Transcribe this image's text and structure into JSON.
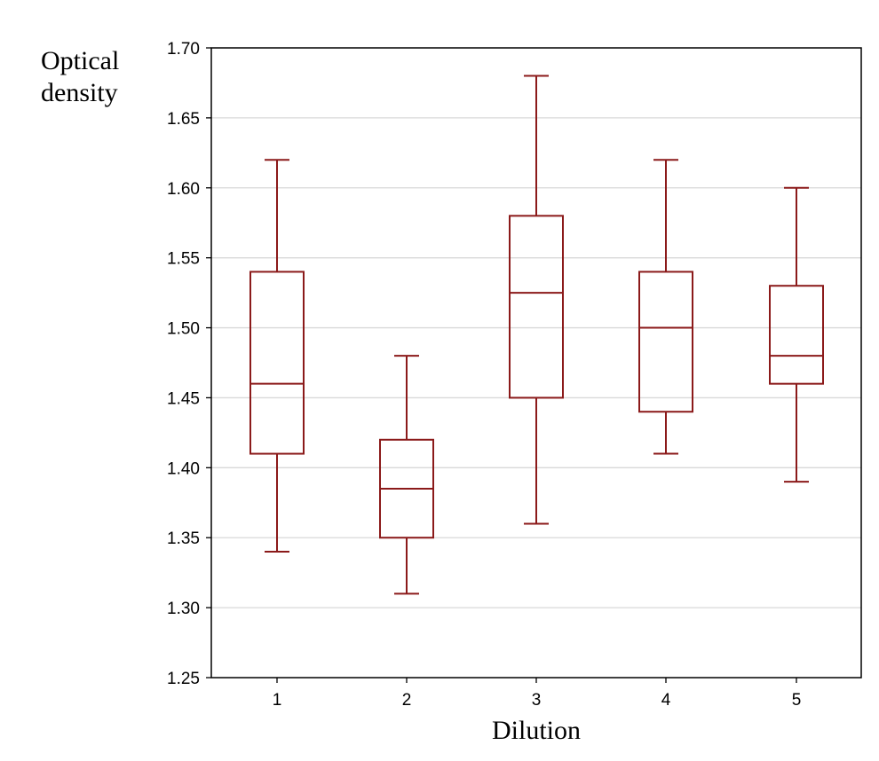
{
  "chart_data": {
    "type": "boxplot",
    "xlabel": "Dilution",
    "ylabel_lines": [
      "Optical",
      "density"
    ],
    "ylim": [
      1.25,
      1.7
    ],
    "yticks": [
      "1.25",
      "1.30",
      "1.35",
      "1.40",
      "1.45",
      "1.50",
      "1.55",
      "1.60",
      "1.65",
      "1.70"
    ],
    "grid": true,
    "categories": [
      "1",
      "2",
      "3",
      "4",
      "5"
    ],
    "boxes": [
      {
        "category": "1",
        "min": 1.34,
        "q1": 1.41,
        "median": 1.46,
        "q3": 1.54,
        "max": 1.62
      },
      {
        "category": "2",
        "min": 1.31,
        "q1": 1.35,
        "median": 1.385,
        "q3": 1.42,
        "max": 1.48
      },
      {
        "category": "3",
        "min": 1.36,
        "q1": 1.45,
        "median": 1.525,
        "q3": 1.58,
        "max": 1.68
      },
      {
        "category": "4",
        "min": 1.41,
        "q1": 1.44,
        "median": 1.5,
        "q3": 1.54,
        "max": 1.62
      },
      {
        "category": "5",
        "min": 1.39,
        "q1": 1.46,
        "median": 1.48,
        "q3": 1.53,
        "max": 1.6
      }
    ],
    "colors": {
      "box": "#8b1a1a",
      "grid": "#d9d9d9",
      "axis": "#000000"
    }
  }
}
